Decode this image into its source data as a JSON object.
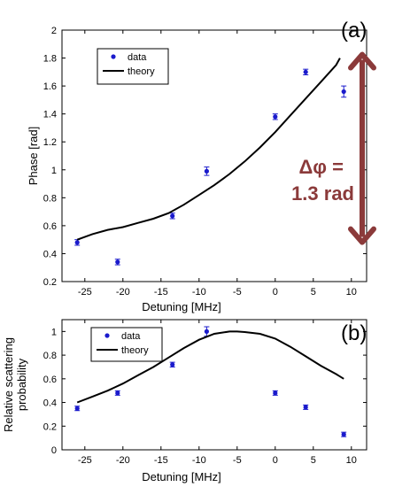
{
  "chart_data": [
    {
      "id": "a",
      "type": "scatter",
      "panel_label": "(a)",
      "xlabel": "Detuning  [MHz]",
      "ylabel": "Phase  [rad]",
      "xlim": [
        -28,
        12
      ],
      "ylim": [
        0.2,
        2.0
      ],
      "x_ticks": [
        -25,
        -20,
        -15,
        -10,
        -5,
        0,
        5,
        10
      ],
      "y_ticks": [
        0.2,
        0.4,
        0.6,
        0.8,
        1.0,
        1.2,
        1.4,
        1.6,
        1.8,
        2.0
      ],
      "y_tick_labels": [
        "0.2",
        "0.4",
        "0.6",
        "0.8",
        "1",
        "1.2",
        "1.4",
        "1.6",
        "1.8",
        "2"
      ],
      "grid": false,
      "legend": {
        "position": "top-left",
        "entries": [
          {
            "label": "data",
            "style": "marker"
          },
          {
            "label": "theory",
            "style": "line"
          }
        ]
      },
      "series": [
        {
          "name": "data",
          "kind": "points",
          "color": "#1a1acc",
          "x": [
            -26.0,
            -20.7,
            -13.5,
            -9.0,
            0.0,
            4.0,
            9.0
          ],
          "y": [
            0.48,
            0.34,
            0.67,
            0.99,
            1.38,
            1.7,
            1.56
          ],
          "yerr": [
            0.02,
            0.02,
            0.02,
            0.03,
            0.02,
            0.02,
            0.04
          ]
        },
        {
          "name": "theory",
          "kind": "line",
          "color": "#000000",
          "x": [
            -26,
            -24,
            -22,
            -20,
            -18,
            -16,
            -14,
            -12,
            -10,
            -8,
            -6,
            -4,
            -2,
            0,
            2,
            4,
            6,
            8,
            8.5
          ],
          "y": [
            0.5,
            0.54,
            0.57,
            0.59,
            0.62,
            0.65,
            0.69,
            0.75,
            0.82,
            0.89,
            0.97,
            1.06,
            1.16,
            1.27,
            1.39,
            1.51,
            1.63,
            1.75,
            1.8
          ]
        }
      ],
      "annotation": {
        "line1": "Δφ =",
        "line2": "1.3 rad",
        "color": "#8b3a3a",
        "arrow_from_y": 1.8,
        "arrow_to_y": 0.5
      }
    },
    {
      "id": "b",
      "type": "scatter",
      "panel_label": "(b)",
      "xlabel": "Detuning  [MHz]",
      "ylabel_lines": [
        "Relative scattering",
        "probability"
      ],
      "xlim": [
        -28,
        12
      ],
      "ylim": [
        0,
        1.1
      ],
      "x_ticks": [
        -25,
        -20,
        -15,
        -10,
        -5,
        0,
        5,
        10
      ],
      "y_ticks": [
        0,
        0.2,
        0.4,
        0.6,
        0.8,
        1.0
      ],
      "y_tick_labels": [
        "0",
        "0.2",
        "0.4",
        "0.6",
        "0.8",
        "1"
      ],
      "grid": false,
      "legend": {
        "position": "top-left",
        "entries": [
          {
            "label": "data",
            "style": "marker"
          },
          {
            "label": "theory",
            "style": "line"
          }
        ]
      },
      "series": [
        {
          "name": "data",
          "kind": "points",
          "color": "#1a1acc",
          "x": [
            -26.0,
            -20.7,
            -13.5,
            -9.0,
            0.0,
            4.0,
            9.0
          ],
          "y": [
            0.35,
            0.48,
            0.72,
            1.0,
            0.48,
            0.36,
            0.13
          ],
          "yerr": [
            0.015,
            0.015,
            0.02,
            0.04,
            0.015,
            0.015,
            0.01
          ]
        },
        {
          "name": "theory",
          "kind": "line",
          "color": "#000000",
          "x": [
            -26,
            -24,
            -22,
            -20,
            -18,
            -16,
            -14,
            -12,
            -10,
            -8,
            -6,
            -5,
            -4,
            -2,
            0,
            2,
            4,
            6,
            8,
            9
          ],
          "y": [
            0.4,
            0.45,
            0.5,
            0.56,
            0.63,
            0.7,
            0.78,
            0.86,
            0.93,
            0.98,
            1.0,
            1.0,
            0.995,
            0.98,
            0.94,
            0.87,
            0.79,
            0.71,
            0.64,
            0.6
          ]
        }
      ]
    }
  ]
}
